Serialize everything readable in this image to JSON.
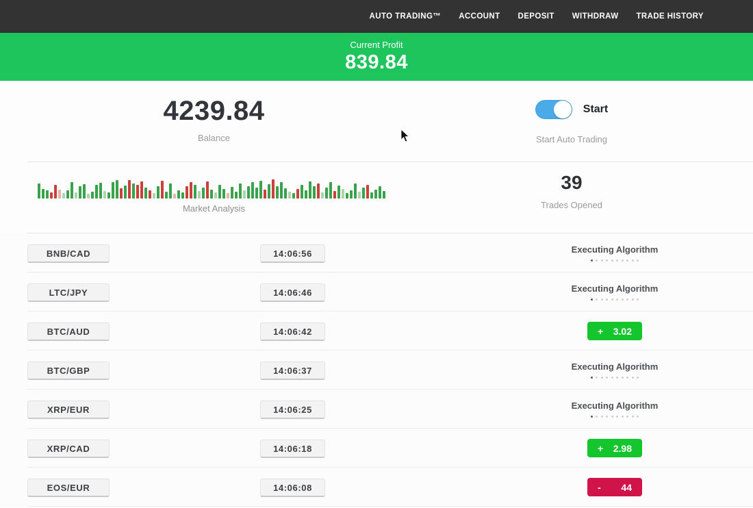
{
  "nav": {
    "items": [
      {
        "label": "AUTO TRADING™"
      },
      {
        "label": "ACCOUNT"
      },
      {
        "label": "DEPOSIT"
      },
      {
        "label": "WITHDRAW"
      },
      {
        "label": "TRADE HISTORY"
      }
    ]
  },
  "profit_banner": {
    "label": "Current Profit",
    "value": "839.84",
    "background": "#1ec45c"
  },
  "account": {
    "balance_value": "4239.84",
    "balance_label": "Balance",
    "toggle_label": "Start",
    "toggle_caption": "Start Auto Trading",
    "toggle_state": "on",
    "toggle_color": "#4babe9"
  },
  "market": {
    "label": "Market Analysis",
    "trades_opened_value": "39",
    "trades_opened_label": "Trades Opened"
  },
  "chart_data": {
    "type": "bar",
    "title": "Market Analysis",
    "ylabel": "",
    "xlabel": "",
    "legend": false,
    "bar_colors": {
      "g": "#3aa24c",
      "r": "#c8413a",
      "lg": "#aed3ae",
      "lr": "#e3b4b0"
    },
    "bars": [
      [
        22,
        "g"
      ],
      [
        14,
        "g"
      ],
      [
        12,
        "g"
      ],
      [
        9,
        "r"
      ],
      [
        20,
        "r"
      ],
      [
        13,
        "lr"
      ],
      [
        8,
        "lg"
      ],
      [
        12,
        "g"
      ],
      [
        24,
        "g"
      ],
      [
        9,
        "lg"
      ],
      [
        18,
        "g"
      ],
      [
        21,
        "g"
      ],
      [
        7,
        "lg"
      ],
      [
        10,
        "g"
      ],
      [
        20,
        "g"
      ],
      [
        23,
        "g"
      ],
      [
        11,
        "lg"
      ],
      [
        9,
        "g"
      ],
      [
        24,
        "g"
      ],
      [
        27,
        "g"
      ],
      [
        15,
        "r"
      ],
      [
        19,
        "g"
      ],
      [
        27,
        "r"
      ],
      [
        22,
        "g"
      ],
      [
        20,
        "r"
      ],
      [
        25,
        "r"
      ],
      [
        16,
        "g"
      ],
      [
        12,
        "r"
      ],
      [
        8,
        "lg"
      ],
      [
        18,
        "g"
      ],
      [
        26,
        "r"
      ],
      [
        10,
        "g"
      ],
      [
        22,
        "g"
      ],
      [
        7,
        "lr"
      ],
      [
        12,
        "g"
      ],
      [
        9,
        "g"
      ],
      [
        18,
        "r"
      ],
      [
        24,
        "r"
      ],
      [
        20,
        "g"
      ],
      [
        11,
        "lg"
      ],
      [
        16,
        "g"
      ],
      [
        25,
        "r"
      ],
      [
        13,
        "g"
      ],
      [
        9,
        "lg"
      ],
      [
        20,
        "g"
      ],
      [
        14,
        "g"
      ],
      [
        8,
        "lr"
      ],
      [
        17,
        "g"
      ],
      [
        10,
        "g"
      ],
      [
        22,
        "g"
      ],
      [
        12,
        "lg"
      ],
      [
        18,
        "g"
      ],
      [
        24,
        "g"
      ],
      [
        16,
        "g"
      ],
      [
        26,
        "g"
      ],
      [
        13,
        "r"
      ],
      [
        21,
        "g"
      ],
      [
        28,
        "r"
      ],
      [
        18,
        "g"
      ],
      [
        24,
        "g"
      ],
      [
        15,
        "g"
      ],
      [
        10,
        "lg"
      ],
      [
        8,
        "g"
      ],
      [
        14,
        "r"
      ],
      [
        20,
        "g"
      ],
      [
        12,
        "g"
      ],
      [
        25,
        "g"
      ],
      [
        18,
        "g"
      ],
      [
        22,
        "r"
      ],
      [
        9,
        "lg"
      ],
      [
        16,
        "g"
      ],
      [
        24,
        "g"
      ],
      [
        11,
        "r"
      ],
      [
        19,
        "g"
      ],
      [
        14,
        "lg"
      ],
      [
        8,
        "g"
      ],
      [
        12,
        "g"
      ],
      [
        22,
        "g"
      ],
      [
        10,
        "lg"
      ],
      [
        16,
        "g"
      ],
      [
        20,
        "r"
      ],
      [
        9,
        "g"
      ],
      [
        13,
        "g"
      ],
      [
        18,
        "g"
      ],
      [
        11,
        "g"
      ]
    ]
  },
  "trades": [
    {
      "pair": "BNB/CAD",
      "time": "14:06:56",
      "status": "executing",
      "status_label": "Executing Algorithm"
    },
    {
      "pair": "LTC/JPY",
      "time": "14:06:46",
      "status": "executing",
      "status_label": "Executing Algorithm"
    },
    {
      "pair": "BTC/AUD",
      "time": "14:06:42",
      "status": "profit",
      "sign": "+",
      "amount": "3.02"
    },
    {
      "pair": "BTC/GBP",
      "time": "14:06:37",
      "status": "executing",
      "status_label": "Executing Algorithm"
    },
    {
      "pair": "XRP/EUR",
      "time": "14:06:25",
      "status": "executing",
      "status_label": "Executing Algorithm"
    },
    {
      "pair": "XRP/CAD",
      "time": "14:06:18",
      "status": "profit",
      "sign": "+",
      "amount": "2.98"
    },
    {
      "pair": "EOS/EUR",
      "time": "14:06:08",
      "status": "loss",
      "sign": "-",
      "amount": "44"
    }
  ],
  "colors": {
    "nav_background": "#333333",
    "profit_badge_green": "#14c52d",
    "loss_badge_red": "#d01349"
  }
}
